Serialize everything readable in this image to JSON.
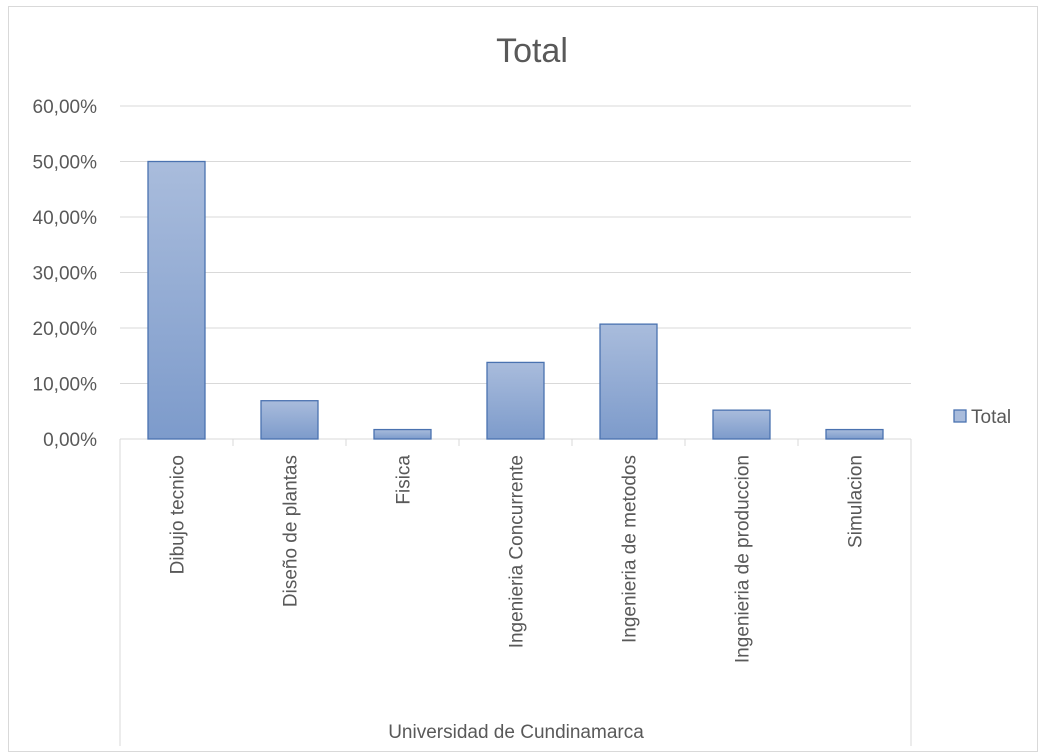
{
  "chart_data": {
    "type": "bar",
    "title": "Total",
    "categories": [
      "Dibujo tecnico",
      "Diseño de plantas",
      "Fisica",
      "Ingenieria Concurrente",
      "Ingenieria de metodos",
      "Ingenieria de produccion",
      "Simulacion"
    ],
    "series": [
      {
        "name": "Total",
        "values": [
          0.5,
          0.069,
          0.017,
          0.138,
          0.207,
          0.052,
          0.017
        ]
      }
    ],
    "ylim": [
      0,
      0.6
    ],
    "yticks": [
      "0,00%",
      "10,00%",
      "20,00%",
      "30,00%",
      "40,00%",
      "50,00%",
      "60,00%"
    ],
    "xlabel": "Universidad de Cundinamarca",
    "legend": {
      "position": "right",
      "label": "Total"
    },
    "grid": true,
    "colors": {
      "bar_top": "#a9bcdc",
      "bar_bottom": "#7d9bcb",
      "bar_stroke": "#4a72b0",
      "grid": "#d9d9d9",
      "text": "#595959"
    }
  }
}
